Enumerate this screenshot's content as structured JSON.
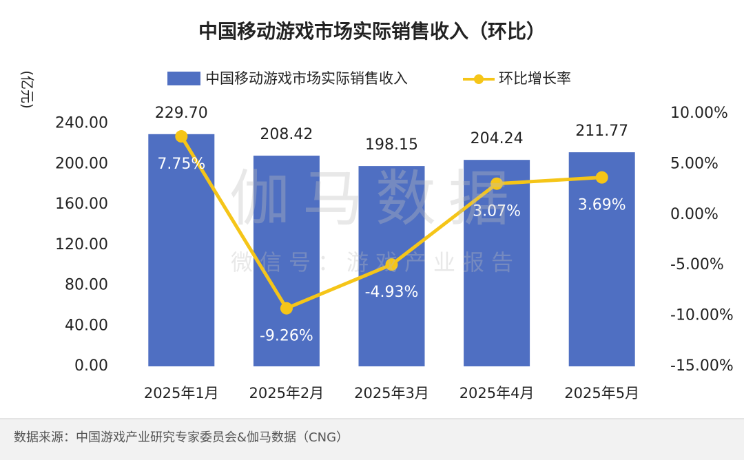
{
  "chart_data": {
    "type": "bar",
    "title": "中国移动游戏市场实际销售收入（环比）",
    "y_axis_label": "(亿元)",
    "categories": [
      "2025年1月",
      "2025年2月",
      "2025年3月",
      "2025年4月",
      "2025年5月"
    ],
    "series": [
      {
        "name": "中国移动游戏市场实际销售收入",
        "type": "bar",
        "color": "#4f6fc2",
        "values": [
          229.7,
          208.42,
          198.15,
          204.24,
          211.77
        ],
        "value_labels": [
          "229.70",
          "208.42",
          "198.15",
          "204.24",
          "211.77"
        ]
      },
      {
        "name": "环比增长率",
        "type": "line",
        "axis": "y2",
        "color": "#f5c518",
        "values": [
          7.75,
          -9.26,
          -4.93,
          3.07,
          3.69
        ],
        "value_labels": [
          "7.75%",
          "-9.26%",
          "-4.93%",
          "3.07%",
          "3.69%"
        ]
      }
    ],
    "ylim": [
      0,
      250
    ],
    "yticks": [
      {
        "value": 0,
        "label": "0.00"
      },
      {
        "value": 40,
        "label": "40.00"
      },
      {
        "value": 80,
        "label": "80.00"
      },
      {
        "value": 120,
        "label": "120.00"
      },
      {
        "value": 160,
        "label": "160.00"
      },
      {
        "value": 200,
        "label": "200.00"
      },
      {
        "value": 240,
        "label": "240.00"
      }
    ],
    "y2lim": [
      -15,
      10
    ],
    "y2ticks": [
      {
        "value": -15,
        "label": "-15.00%"
      },
      {
        "value": -10,
        "label": "-10.00%"
      },
      {
        "value": -5,
        "label": "-5.00%"
      },
      {
        "value": 0,
        "label": "0.00%"
      },
      {
        "value": 5,
        "label": "5.00%"
      },
      {
        "value": 10,
        "label": "10.00%"
      }
    ],
    "legend": "top",
    "watermark": [
      "伽马数据",
      "微信号：游戏产业报告"
    ],
    "source": "数据来源：中国游戏产业研究专家委员会&伽马数据（CNG）"
  }
}
